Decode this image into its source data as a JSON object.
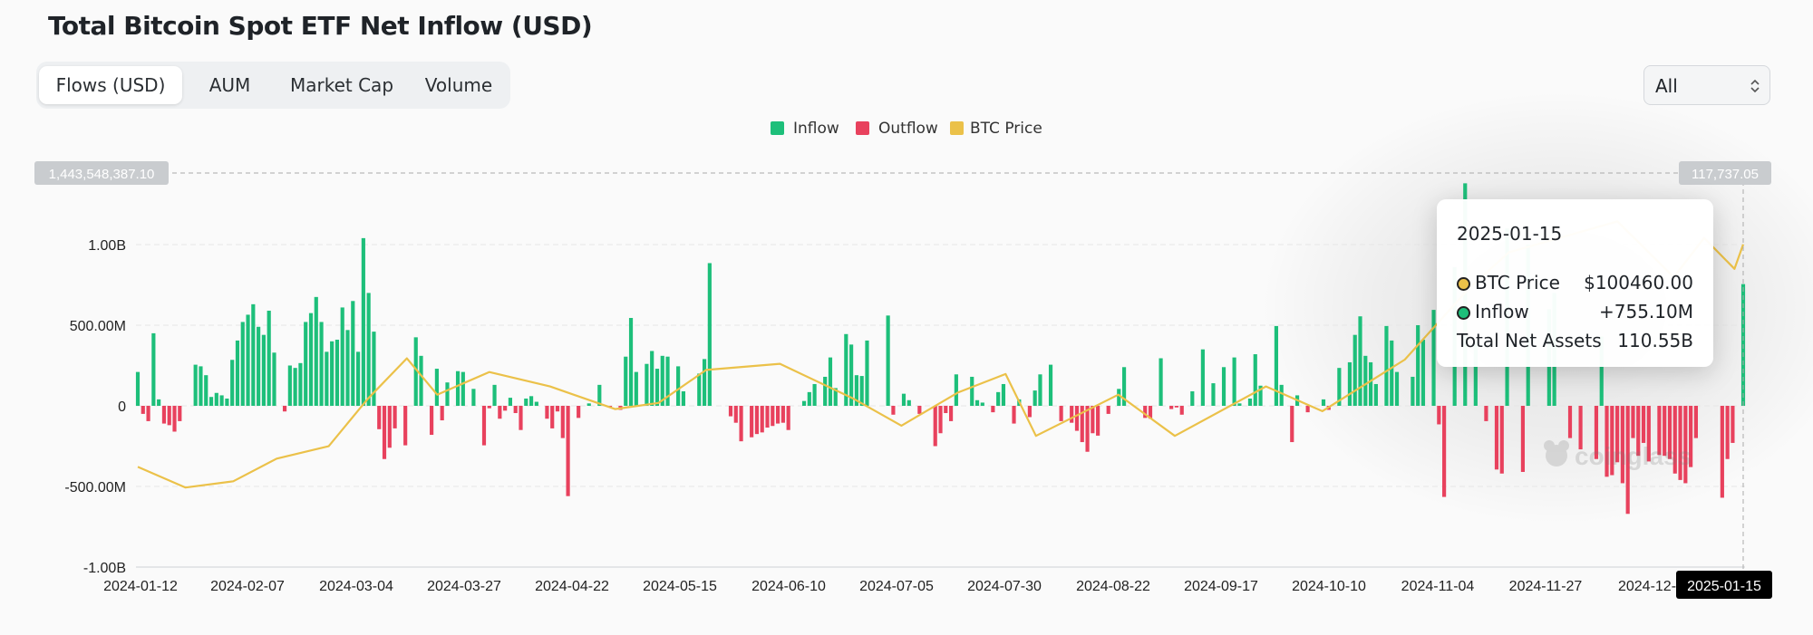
{
  "page": {
    "title": "Total Bitcoin Spot ETF Net Inflow (USD)"
  },
  "tabs": [
    {
      "label": "Flows (USD)"
    },
    {
      "label": "AUM"
    },
    {
      "label": "Market Cap"
    },
    {
      "label": "Volume"
    }
  ],
  "range_select": {
    "value": "All"
  },
  "legend": [
    {
      "label": "Inflow",
      "color": "#1dbf7a"
    },
    {
      "label": "Outflow",
      "color": "#e8415d"
    },
    {
      "label": "BTC Price",
      "color": "#ebc149"
    }
  ],
  "crosshair": {
    "left_value": "1,443,548,387.10",
    "right_value": "117,737.05",
    "date": "2025-01-15"
  },
  "tooltip": {
    "date": "2025-01-15",
    "btc_label": "BTC Price",
    "btc_value": "$100460.00",
    "inflow_label": "Inflow",
    "inflow_value": "+755.10M",
    "assets_label": "Total Net Assets",
    "assets_value": "110.55B"
  },
  "watermark": "coinglass",
  "chart_data": {
    "type": "bar",
    "title": "Total Bitcoin Spot ETF Net Inflow (USD)",
    "y_ticks": [
      "1.00B",
      "500.00M",
      "0",
      "-500.00M",
      "-1.00B"
    ],
    "ylim": [
      -1000000000,
      1500000000
    ],
    "x_ticks": [
      "2024-01-12",
      "2024-02-07",
      "2024-03-04",
      "2024-03-27",
      "2024-04-22",
      "2024-05-15",
      "2024-06-10",
      "2024-07-05",
      "2024-07-30",
      "2024-08-22",
      "2024-09-17",
      "2024-10-10",
      "2024-11-04",
      "2024-11-27",
      "2024-12-"
    ],
    "x_range": [
      "2024-01-11",
      "2025-01-15"
    ],
    "series": [
      {
        "name": "Inflow",
        "color": "#1dbf7a"
      },
      {
        "name": "Outflow",
        "color": "#e8415d"
      },
      {
        "name": "BTC Price",
        "color": "#ebc149",
        "axis": "right"
      }
    ],
    "net_flow_millions": [
      210,
      -50,
      -95,
      450,
      40,
      -110,
      -120,
      -160,
      -95,
      0,
      0,
      255,
      245,
      190,
      55,
      80,
      65,
      45,
      285,
      405,
      520,
      565,
      630,
      490,
      440,
      590,
      330,
      0,
      -35,
      250,
      235,
      265,
      520,
      575,
      675,
      520,
      335,
      400,
      410,
      610,
      470,
      650,
      335,
      1040,
      700,
      460,
      -145,
      -330,
      -260,
      -140,
      0,
      -245,
      0,
      425,
      310,
      0,
      -180,
      230,
      -90,
      145,
      0,
      215,
      210,
      0,
      105,
      0,
      -245,
      -15,
      130,
      -80,
      -30,
      50,
      -45,
      -150,
      45,
      60,
      25,
      0,
      -80,
      -140,
      -35,
      -200,
      -560,
      0,
      -75,
      0,
      15,
      0,
      130,
      0,
      -10,
      0,
      -25,
      305,
      545,
      210,
      0,
      260,
      340,
      230,
      310,
      305,
      0,
      245,
      90,
      0,
      0,
      200,
      290,
      885,
      0,
      0,
      0,
      -65,
      -105,
      -220,
      0,
      -195,
      -175,
      -165,
      -135,
      -125,
      -110,
      -105,
      -150,
      0,
      0,
      30,
      85,
      135,
      0,
      180,
      300,
      110,
      0,
      445,
      380,
      190,
      185,
      405,
      0,
      0,
      0,
      560,
      -55,
      0,
      75,
      35,
      0,
      -50,
      0,
      0,
      -250,
      -170,
      -45,
      -95,
      195,
      0,
      0,
      180,
      35,
      20,
      0,
      -40,
      85,
      135,
      0,
      -110,
      40,
      0,
      -70,
      95,
      195,
      0,
      255,
      0,
      -95,
      0,
      -105,
      -155,
      -225,
      -285,
      -170,
      -185,
      0,
      -50,
      0,
      105,
      240,
      0,
      0,
      0,
      -75,
      -80,
      0,
      295,
      0,
      -20,
      -10,
      -55,
      0,
      90,
      0,
      350,
      0,
      140,
      0,
      240,
      0,
      300,
      15,
      0,
      45,
      320,
      125,
      0,
      0,
      495,
      130,
      0,
      -225,
      65,
      0,
      -40,
      0,
      0,
      40,
      -25,
      0,
      235,
      0,
      270,
      440,
      555,
      310,
      270,
      135,
      0,
      495,
      405,
      210,
      0,
      0,
      180,
      500,
      410,
      0,
      595,
      -115,
      -565,
      0,
      860,
      0,
      1380,
      0,
      400,
      0,
      -95,
      0,
      -395,
      -420,
      1100,
      0,
      0,
      -410,
      1000,
      0,
      0,
      0,
      600,
      700,
      0,
      0,
      -200,
      0,
      -270,
      0,
      0,
      -330,
      430,
      -440,
      -430,
      -350,
      -480,
      -670,
      -200,
      -310,
      -230,
      -345,
      0,
      -305,
      -310,
      -330,
      -420,
      -460,
      -480,
      -380,
      -200,
      0,
      0,
      0,
      0,
      -570,
      -330,
      -230,
      0,
      755
    ],
    "btc_price_usd": [
      {
        "date": "2024-01-11",
        "price": 46500
      },
      {
        "date": "2024-01-22",
        "price": 41500
      },
      {
        "date": "2024-02-02",
        "price": 43000
      },
      {
        "date": "2024-02-12",
        "price": 48500
      },
      {
        "date": "2024-02-24",
        "price": 51500
      },
      {
        "date": "2024-03-04",
        "price": 63000
      },
      {
        "date": "2024-03-13",
        "price": 72800
      },
      {
        "date": "2024-03-20",
        "price": 64000
      },
      {
        "date": "2024-04-01",
        "price": 69500
      },
      {
        "date": "2024-04-15",
        "price": 66000
      },
      {
        "date": "2024-04-30",
        "price": 60500
      },
      {
        "date": "2024-05-10",
        "price": 62000
      },
      {
        "date": "2024-05-21",
        "price": 70000
      },
      {
        "date": "2024-06-07",
        "price": 71500
      },
      {
        "date": "2024-06-24",
        "price": 63000
      },
      {
        "date": "2024-07-05",
        "price": 56500
      },
      {
        "date": "2024-07-18",
        "price": 64500
      },
      {
        "date": "2024-07-29",
        "price": 69000
      },
      {
        "date": "2024-08-05",
        "price": 54000
      },
      {
        "date": "2024-08-24",
        "price": 64000
      },
      {
        "date": "2024-09-06",
        "price": 54000
      },
      {
        "date": "2024-09-27",
        "price": 66000
      },
      {
        "date": "2024-10-10",
        "price": 60000
      },
      {
        "date": "2024-10-29",
        "price": 72500
      },
      {
        "date": "2024-11-13",
        "price": 90000
      },
      {
        "date": "2024-11-22",
        "price": 98500
      },
      {
        "date": "2024-12-17",
        "price": 106000
      },
      {
        "date": "2024-12-30",
        "price": 92500
      },
      {
        "date": "2025-01-06",
        "price": 102000
      },
      {
        "date": "2025-01-13",
        "price": 94500
      },
      {
        "date": "2025-01-15",
        "price": 100460
      }
    ]
  }
}
